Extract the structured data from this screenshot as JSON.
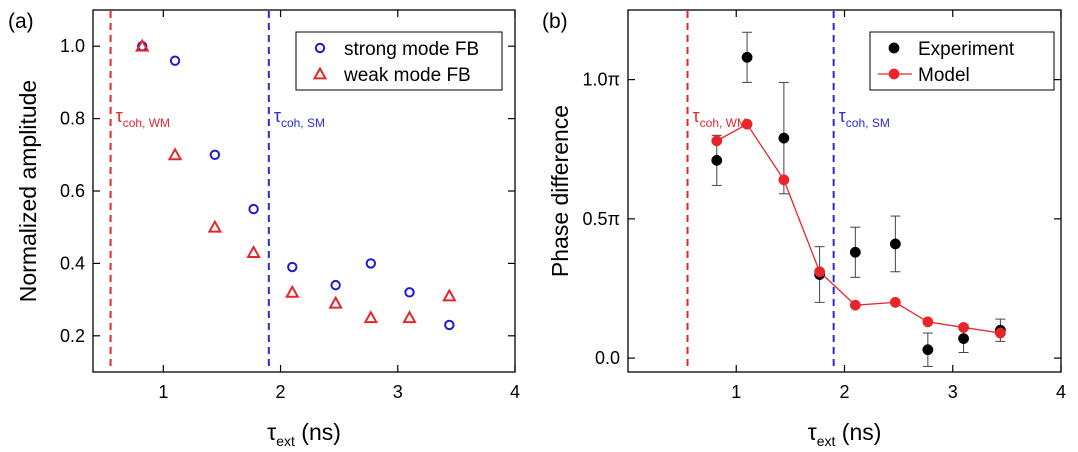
{
  "chart_data": [
    {
      "panel": "(a)",
      "type": "scatter",
      "xlabel_symbol": "τ",
      "xlabel_sub": "ext",
      "xlabel_unit": " (ns)",
      "ylabel": "Normalized amplitude",
      "xlim": [
        0.4,
        4.0
      ],
      "ylim": [
        0.1,
        1.1
      ],
      "xticks": [
        1,
        2,
        3,
        4
      ],
      "yticks": [
        0.2,
        0.4,
        0.6,
        0.8,
        1.0
      ],
      "ytick_labels": [
        "0.2",
        "0.4",
        "0.6",
        "0.8",
        "1.0"
      ],
      "legend_position": "top-right",
      "grid": false,
      "vlines": [
        {
          "x": 0.55,
          "color": "#e8262a",
          "symbol": "τ",
          "sub": "coh, WM"
        },
        {
          "x": 1.9,
          "color": "#2b2bd6",
          "symbol": "τ",
          "sub": "coh, SM"
        }
      ],
      "series": [
        {
          "name": "strong mode FB",
          "marker": "circle",
          "color": "#1c1ccf",
          "x": [
            0.82,
            1.1,
            1.44,
            1.77,
            2.1,
            2.47,
            2.77,
            3.1,
            3.44
          ],
          "y": [
            1.0,
            0.96,
            0.7,
            0.55,
            0.39,
            0.34,
            0.4,
            0.32,
            0.23
          ]
        },
        {
          "name": "weak mode FB",
          "marker": "triangle",
          "color": "#e8262a",
          "x": [
            0.82,
            1.1,
            1.44,
            1.77,
            2.1,
            2.47,
            2.77,
            3.1,
            3.44
          ],
          "y": [
            1.0,
            0.7,
            0.5,
            0.43,
            0.32,
            0.29,
            0.25,
            0.25,
            0.31
          ]
        }
      ]
    },
    {
      "panel": "(b)",
      "type": "scatter",
      "xlabel_symbol": "τ",
      "xlabel_sub": "ext",
      "xlabel_unit": " (ns)",
      "ylabel": "Phase difference",
      "xlim": [
        0.0,
        4.0
      ],
      "ylim": [
        -0.05,
        1.25
      ],
      "xticks": [
        1,
        2,
        3,
        4
      ],
      "yticks": [
        0.0,
        0.5,
        1.0
      ],
      "ytick_labels": [
        "0.0",
        "0.5π",
        "1.0π"
      ],
      "legend_position": "top-right",
      "grid": false,
      "vlines": [
        {
          "x": 0.55,
          "color": "#e8262a",
          "symbol": "τ",
          "sub": "coh, WM"
        },
        {
          "x": 1.9,
          "color": "#2b2bd6",
          "symbol": "τ",
          "sub": "coh, SM"
        }
      ],
      "series": [
        {
          "name": "Experiment",
          "marker": "filled-circle",
          "color": "#000000",
          "x": [
            0.82,
            1.1,
            1.44,
            1.77,
            2.1,
            2.47,
            2.77,
            3.1,
            3.44
          ],
          "y": [
            0.71,
            1.08,
            0.79,
            0.3,
            0.38,
            0.41,
            0.03,
            0.07,
            0.1
          ],
          "yerr": [
            0.09,
            0.09,
            0.2,
            0.1,
            0.09,
            0.1,
            0.06,
            0.05,
            0.04
          ]
        },
        {
          "name": "Model",
          "marker": "filled-circle-line",
          "color": "#e8262a",
          "x": [
            0.82,
            1.1,
            1.44,
            1.77,
            2.1,
            2.47,
            2.77,
            3.1,
            3.44
          ],
          "y": [
            0.78,
            0.84,
            0.64,
            0.31,
            0.19,
            0.2,
            0.13,
            0.11,
            0.09
          ]
        }
      ]
    }
  ]
}
